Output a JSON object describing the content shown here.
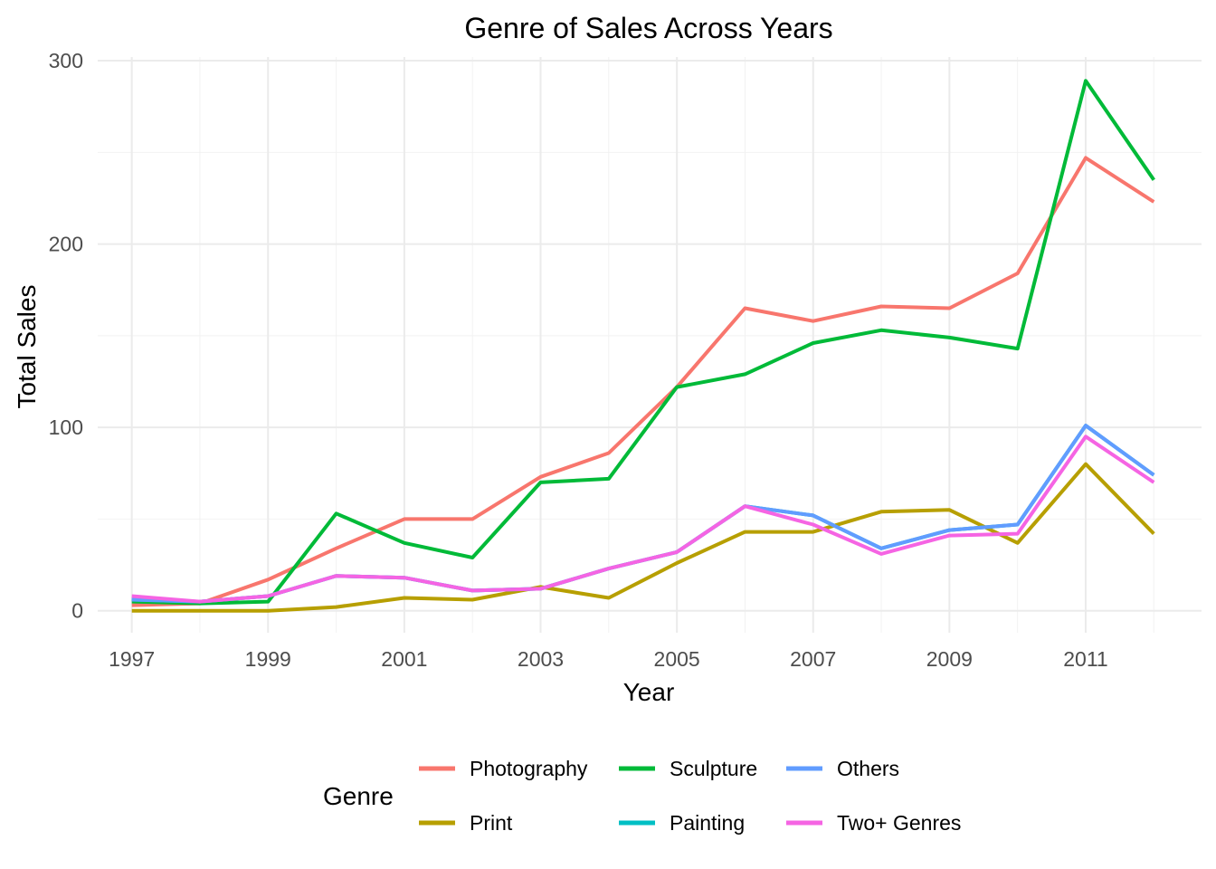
{
  "chart_data": {
    "type": "line",
    "title": "Genre of Sales Across Years",
    "xlabel": "Year",
    "ylabel": "Total Sales",
    "x": [
      1997,
      1998,
      1999,
      2000,
      2001,
      2002,
      2003,
      2004,
      2005,
      2006,
      2007,
      2008,
      2009,
      2010,
      2011,
      2012
    ],
    "x_ticks": [
      1997,
      1999,
      2001,
      2003,
      2005,
      2007,
      2009,
      2011
    ],
    "y_ticks": [
      0,
      100,
      200,
      300
    ],
    "xlim": [
      1996.5,
      2012.7
    ],
    "ylim": [
      -12,
      302
    ],
    "grid": true,
    "legend_title": "Genre",
    "legend_position": "bottom",
    "series": [
      {
        "name": "Photography",
        "color": "#F8766D",
        "values": [
          3,
          4,
          17,
          34,
          50,
          50,
          73,
          86,
          122,
          165,
          158,
          166,
          165,
          184,
          247,
          223
        ]
      },
      {
        "name": "Print",
        "color": "#B79F00",
        "values": [
          0,
          0,
          0,
          2,
          7,
          6,
          13,
          7,
          26,
          43,
          43,
          54,
          55,
          37,
          80,
          42
        ]
      },
      {
        "name": "Sculpture",
        "color": "#00BA38",
        "values": [
          5,
          4,
          5,
          53,
          37,
          29,
          70,
          72,
          122,
          129,
          146,
          153,
          149,
          143,
          289,
          235
        ]
      },
      {
        "name": "Painting",
        "color": "#00BFC4",
        "values": [
          6,
          5,
          8,
          19,
          18,
          11,
          12,
          23,
          32,
          57,
          52,
          34,
          44,
          47,
          101,
          74
        ]
      },
      {
        "name": "Others",
        "color": "#619CFF",
        "values": [
          6,
          5,
          8,
          19,
          18,
          11,
          12,
          23,
          32,
          57,
          52,
          34,
          44,
          47,
          101,
          74
        ]
      },
      {
        "name": "Two+ Genres",
        "color": "#F564E3",
        "values": [
          8,
          5,
          8,
          19,
          18,
          11,
          12,
          23,
          32,
          57,
          47,
          31,
          41,
          42,
          95,
          70
        ]
      }
    ]
  }
}
